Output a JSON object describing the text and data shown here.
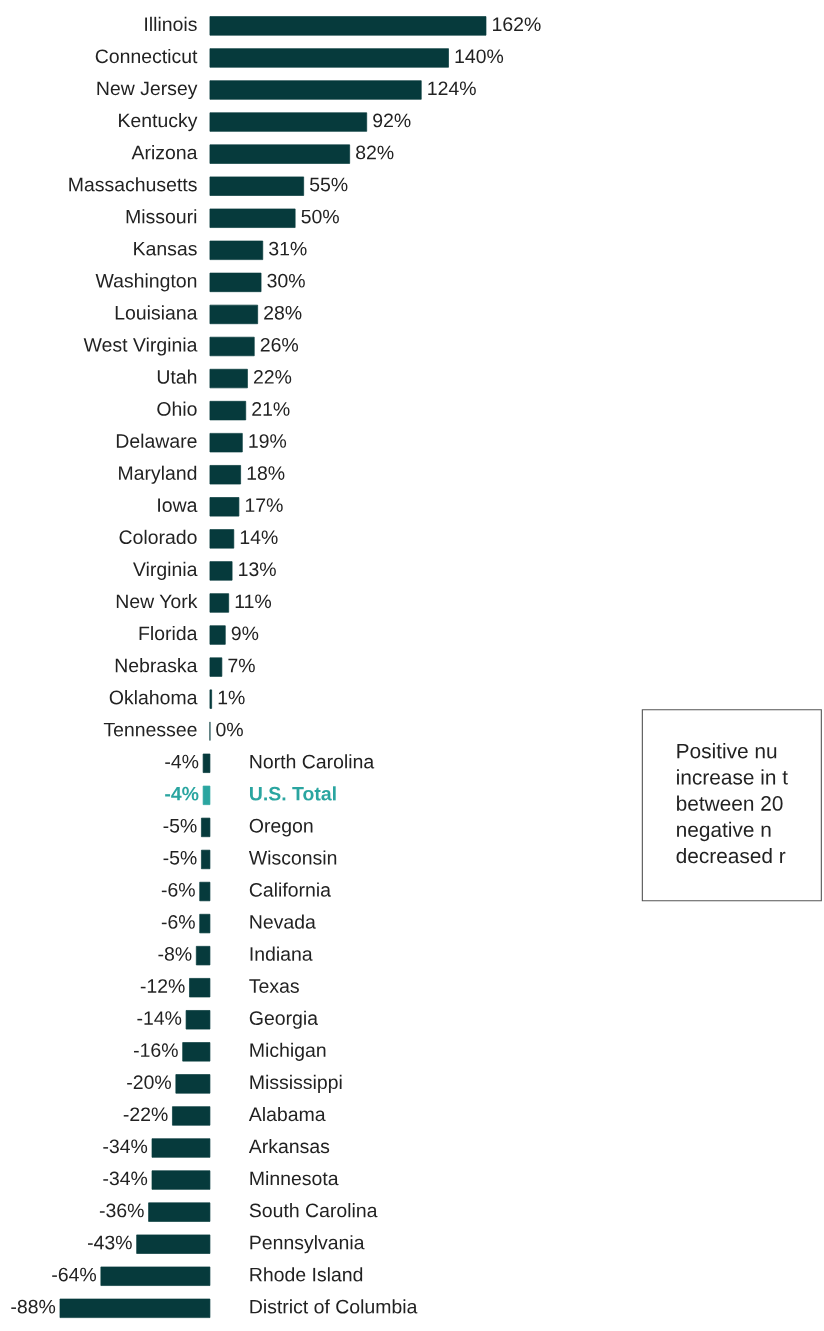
{
  "chart_data": {
    "type": "bar",
    "orientation": "horizontal",
    "categories": [
      "Illinois",
      "Connecticut",
      "New Jersey",
      "Kentucky",
      "Arizona",
      "Massachusetts",
      "Missouri",
      "Kansas",
      "Washington",
      "Louisiana",
      "West Virginia",
      "Utah",
      "Ohio",
      "Delaware",
      "Maryland",
      "Iowa",
      "Colorado",
      "Virginia",
      "New York",
      "Florida",
      "Nebraska",
      "Oklahoma",
      "Tennessee",
      "North Carolina",
      "U.S. Total",
      "Oregon",
      "Wisconsin",
      "California",
      "Nevada",
      "Indiana",
      "Texas",
      "Georgia",
      "Michigan",
      "Mississippi",
      "Alabama",
      "Arkansas",
      "Minnesota",
      "South Carolina",
      "Pennsylvania",
      "Rhode Island",
      "District of Columbia"
    ],
    "values": [
      162,
      140,
      124,
      92,
      82,
      55,
      50,
      31,
      30,
      28,
      26,
      22,
      21,
      19,
      18,
      17,
      14,
      13,
      11,
      9,
      7,
      1,
      0,
      -4,
      -4,
      -5,
      -5,
      -6,
      -6,
      -8,
      -12,
      -14,
      -16,
      -20,
      -22,
      -34,
      -34,
      -36,
      -43,
      -64,
      -88
    ],
    "value_labels": [
      "162%",
      "140%",
      "124%",
      "92%",
      "82%",
      "55%",
      "50%",
      "31%",
      "30%",
      "28%",
      "26%",
      "22%",
      "21%",
      "19%",
      "18%",
      "17%",
      "14%",
      "13%",
      "11%",
      "9%",
      "7%",
      "1%",
      "0%",
      "-4%",
      "-4%",
      "-5%",
      "-5%",
      "-6%",
      "-6%",
      "-8%",
      "-12%",
      "-14%",
      "-16%",
      "-20%",
      "-22%",
      "-34%",
      "-34%",
      "-36%",
      "-43%",
      "-64%",
      "-88%"
    ],
    "color": "#063a3c",
    "colors": [
      "#063a3c",
      "#063a3c",
      "#063a3c",
      "#063a3c",
      "#063a3c",
      "#063a3c",
      "#063a3c",
      "#063a3c",
      "#063a3c",
      "#063a3c",
      "#063a3c",
      "#063a3c",
      "#063a3c",
      "#063a3c",
      "#063a3c",
      "#063a3c",
      "#063a3c",
      "#063a3c",
      "#063a3c",
      "#063a3c",
      "#063a3c",
      "#063a3c",
      "#063a3c",
      "#063a3c",
      "#2aa5a0",
      "#063a3c",
      "#063a3c",
      "#063a3c",
      "#063a3c",
      "#063a3c",
      "#063a3c",
      "#063a3c",
      "#063a3c",
      "#063a3c",
      "#063a3c",
      "#063a3c",
      "#063a3c",
      "#063a3c",
      "#063a3c",
      "#063a3c",
      "#063a3c"
    ],
    "annotations": [
      "Positive nu\nincrease in t\nbetween 20\nnegative n\ndecreased r"
    ]
  }
}
